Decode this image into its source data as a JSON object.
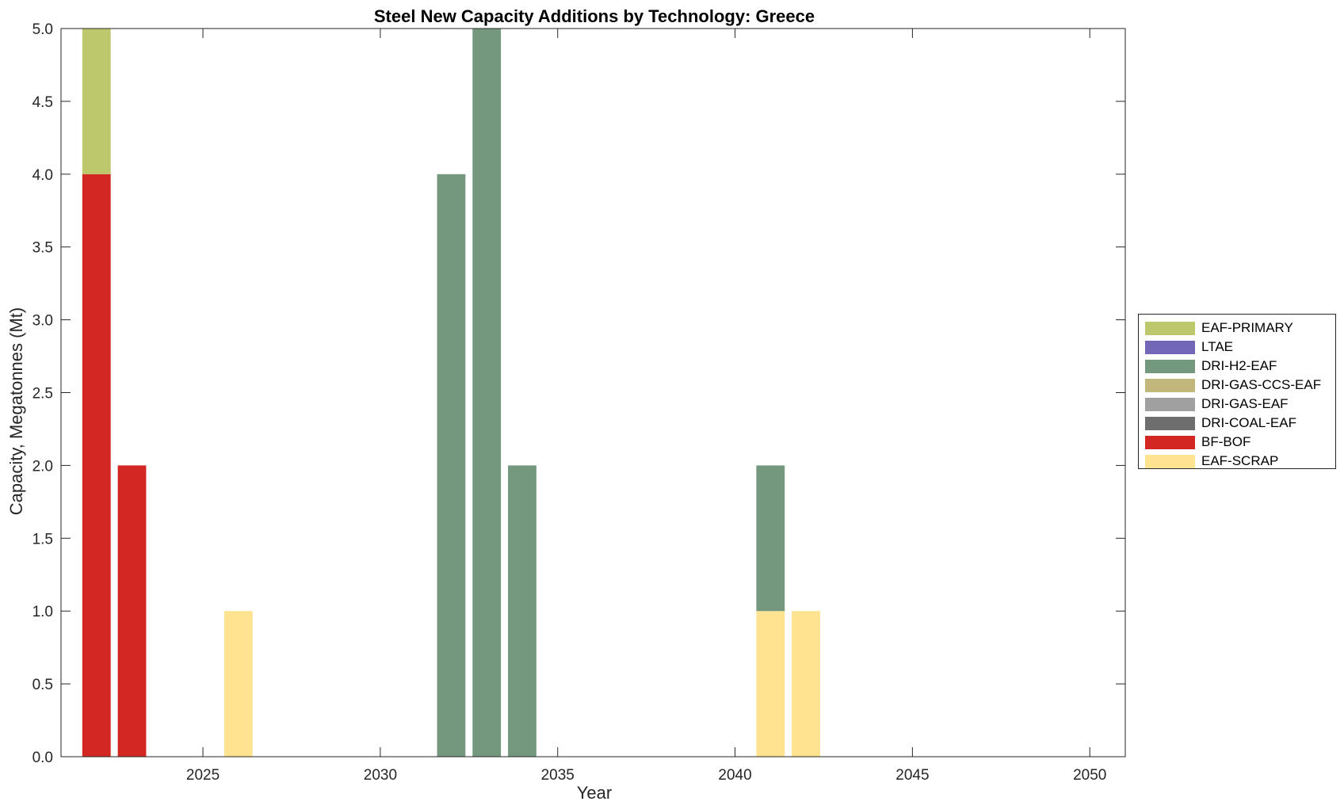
{
  "chart_data": {
    "type": "bar",
    "stacked": true,
    "title": "Steel New Capacity Additions by Technology: Greece",
    "xlabel": "Year",
    "ylabel": "Capacity, Megatonnes (Mt)",
    "xlim": [
      2021,
      2051
    ],
    "ylim": [
      0,
      5
    ],
    "xticks": [
      "2025",
      "2030",
      "2035",
      "2040",
      "2045",
      "2050"
    ],
    "yticks": [
      "0.0",
      "0.5",
      "1.0",
      "1.5",
      "2.0",
      "2.5",
      "3.0",
      "3.5",
      "4.0",
      "4.5",
      "5.0"
    ],
    "legend_position": "right",
    "grid": false,
    "x": [
      2022,
      2023,
      2024,
      2025,
      2026,
      2027,
      2028,
      2029,
      2030,
      2031,
      2032,
      2033,
      2034,
      2035,
      2036,
      2037,
      2038,
      2039,
      2040,
      2041,
      2042,
      2043,
      2044,
      2045,
      2046,
      2047,
      2048,
      2049,
      2050
    ],
    "series": [
      {
        "name": "EAF-SCRAP",
        "color": "#FFE391",
        "values": [
          0,
          0,
          0,
          0,
          1,
          0,
          0,
          0,
          0,
          0,
          0,
          0,
          0,
          0,
          0,
          0,
          0,
          0,
          0,
          1,
          1,
          0,
          0,
          0,
          0,
          0,
          0,
          0,
          0
        ]
      },
      {
        "name": "BF-BOF",
        "color": "#D22722",
        "values": [
          4,
          2,
          0,
          0,
          0,
          0,
          0,
          0,
          0,
          0,
          0,
          0,
          0,
          0,
          0,
          0,
          0,
          0,
          0,
          0,
          0,
          0,
          0,
          0,
          0,
          0,
          0,
          0,
          0
        ]
      },
      {
        "name": "DRI-COAL-EAF",
        "color": "#6E6E6E",
        "values": [
          0,
          0,
          0,
          0,
          0,
          0,
          0,
          0,
          0,
          0,
          0,
          0,
          0,
          0,
          0,
          0,
          0,
          0,
          0,
          0,
          0,
          0,
          0,
          0,
          0,
          0,
          0,
          0,
          0
        ]
      },
      {
        "name": "DRI-GAS-EAF",
        "color": "#A0A0A0",
        "values": [
          0,
          0,
          0,
          0,
          0,
          0,
          0,
          0,
          0,
          0,
          0,
          0,
          0,
          0,
          0,
          0,
          0,
          0,
          0,
          0,
          0,
          0,
          0,
          0,
          0,
          0,
          0,
          0,
          0
        ]
      },
      {
        "name": "DRI-GAS-CCS-EAF",
        "color": "#C2B77A",
        "values": [
          0,
          0,
          0,
          0,
          0,
          0,
          0,
          0,
          0,
          0,
          0,
          0,
          0,
          0,
          0,
          0,
          0,
          0,
          0,
          0,
          0,
          0,
          0,
          0,
          0,
          0,
          0,
          0,
          0
        ]
      },
      {
        "name": "DRI-H2-EAF",
        "color": "#74987E",
        "values": [
          0,
          0,
          0,
          0,
          0,
          0,
          0,
          0,
          0,
          0,
          4,
          5,
          2,
          0,
          0,
          0,
          0,
          0,
          0,
          1,
          0,
          0,
          0,
          0,
          0,
          0,
          0,
          0,
          0
        ]
      },
      {
        "name": "LTAE",
        "color": "#7267B7",
        "values": [
          0,
          0,
          0,
          0,
          0,
          0,
          0,
          0,
          0,
          0,
          0,
          0,
          0,
          0,
          0,
          0,
          0,
          0,
          0,
          0,
          0,
          0,
          0,
          0,
          0,
          0,
          0,
          0,
          0
        ]
      },
      {
        "name": "EAF-PRIMARY",
        "color": "#BDC76C",
        "values": [
          1,
          0,
          0,
          0,
          0,
          0,
          0,
          0,
          0,
          0,
          0,
          0,
          0,
          0,
          0,
          0,
          0,
          0,
          0,
          0,
          0,
          0,
          0,
          0,
          0,
          0,
          0,
          0,
          0
        ]
      }
    ],
    "legend_order": [
      "EAF-PRIMARY",
      "LTAE",
      "DRI-H2-EAF",
      "DRI-GAS-CCS-EAF",
      "DRI-GAS-EAF",
      "DRI-COAL-EAF",
      "BF-BOF",
      "EAF-SCRAP"
    ]
  }
}
